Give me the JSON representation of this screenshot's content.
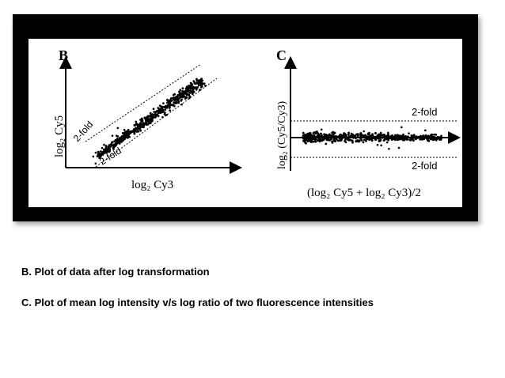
{
  "panels": {
    "b": {
      "letter": "B",
      "xlabel": "log₂ Cy3",
      "ylabel": "log₂ Cy5",
      "upper_fold": "2-fold",
      "lower_fold": "2-fold"
    },
    "c": {
      "letter": "C",
      "xlabel": "(log₂ Cy5 + log₂ Cy3)/2",
      "ylabel": "log₂ (Cy5/Cy3)",
      "upper_fold": "2-fold",
      "lower_fold": "2-fold"
    }
  },
  "captions": {
    "b": "B. Plot of data after log transformation",
    "c": "C.  Plot of mean log intensity v/s log ratio of two fluorescence  intensities"
  },
  "colors": {
    "frame": "#000000",
    "panel": "#ffffff",
    "points": "#000000"
  }
}
